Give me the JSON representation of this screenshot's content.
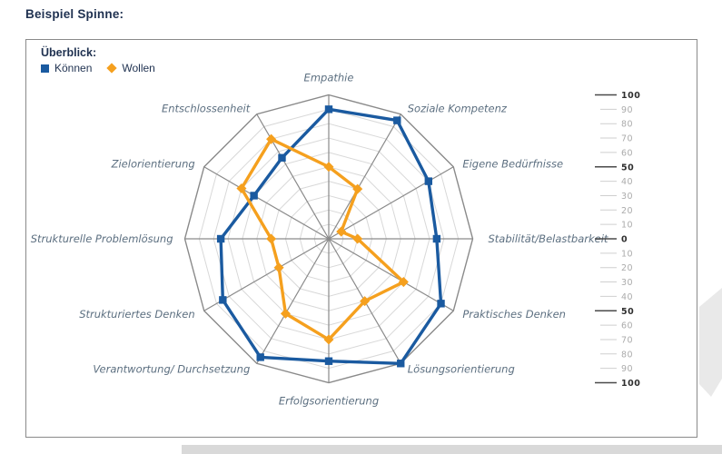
{
  "page": {
    "title": "Beispiel Spinne:"
  },
  "chart_data": {
    "type": "radar",
    "legend_title": "Überblick:",
    "legend_position": "top-left",
    "scale_position": "right",
    "categories": [
      "Empathie",
      "Soziale Kompetenz",
      "Eigene Bedürfnisse",
      "Stabilität/Belastbarkeit",
      "Praktisches Denken",
      "Lösungsorientierung",
      "Erfolgsorientierung",
      "Verantwortung/ Durchsetzung",
      "Strukturiertes Denken",
      "Strukturelle Problemlösung",
      "Zielorientierung",
      "Entschlossenheit"
    ],
    "series": [
      {
        "name": "Können",
        "marker": "square",
        "color": "#1A5AA0",
        "values": [
          90,
          95,
          80,
          75,
          90,
          100,
          85,
          95,
          85,
          75,
          60,
          65
        ]
      },
      {
        "name": "Wollen",
        "marker": "diamond",
        "color": "#F5A01E",
        "values": [
          50,
          40,
          10,
          20,
          60,
          50,
          70,
          60,
          40,
          40,
          70,
          80
        ]
      }
    ],
    "axis_scale": {
      "min": 0,
      "max": 100,
      "step": 10,
      "emphasized": [
        0,
        50,
        100
      ]
    },
    "right_scale_labels": [
      100,
      90,
      80,
      70,
      60,
      50,
      40,
      30,
      20,
      10,
      0,
      10,
      20,
      30,
      40,
      50,
      60,
      70,
      80,
      90,
      100
    ],
    "grid": {
      "rings": 10,
      "ring_color": "#D8D8D8",
      "spoke_color": "#8A8A8A",
      "label_color": "#5C6F80"
    },
    "decor": {
      "watermark_color": "#E9E9E9",
      "bottom_strip_color": "#D9D9D9"
    }
  }
}
